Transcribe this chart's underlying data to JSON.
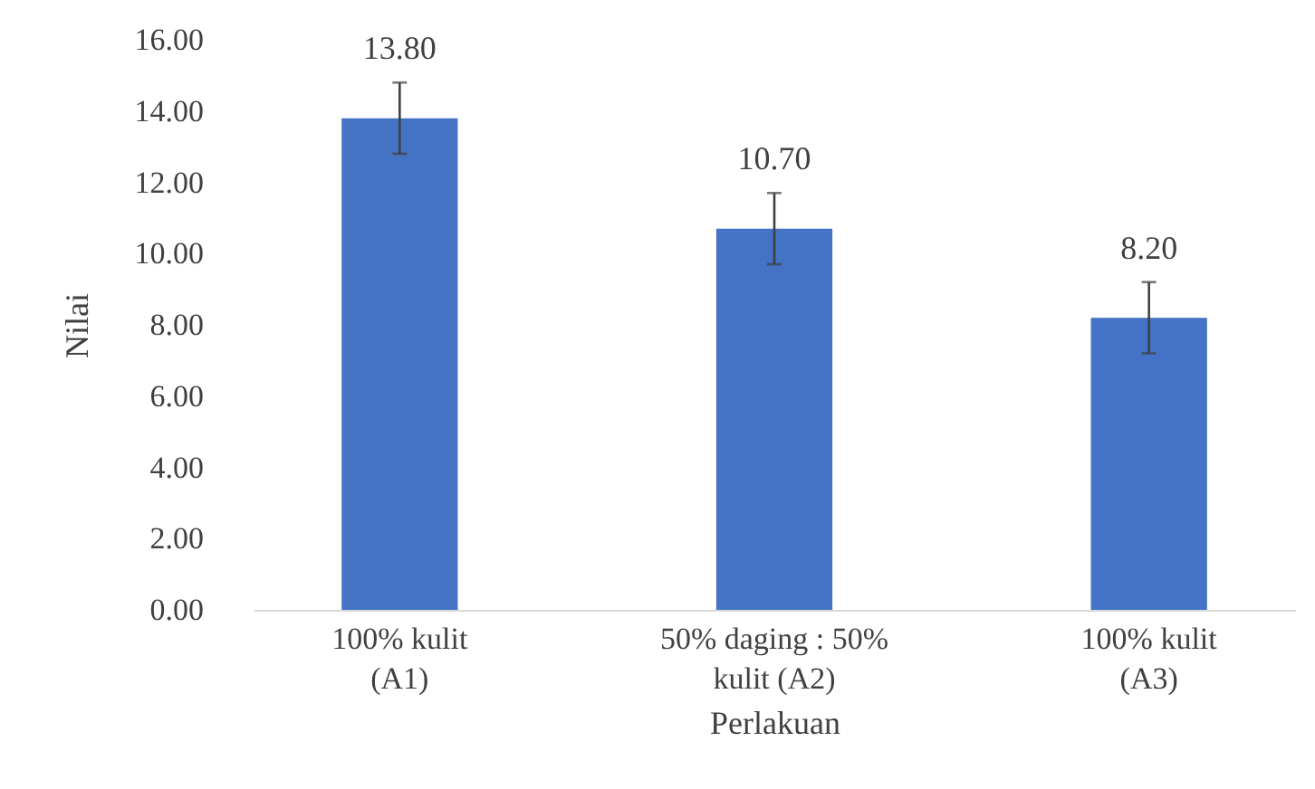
{
  "chart_data": {
    "type": "bar",
    "xlabel": "Perlakuan",
    "ylabel": "Nilai",
    "categories": [
      "100% kulit\n(A1)",
      "50% daging : 50%\nkulit   (A2)",
      "100% kulit\n(A3)"
    ],
    "values": [
      13.8,
      10.7,
      8.2
    ],
    "color": "#4472c4",
    "errors": [
      1,
      1,
      1
    ],
    "value_labels": [
      "13.80",
      "10.70",
      "8.20"
    ],
    "ylim": [
      0,
      16
    ],
    "yticks": [
      {
        "value": 0,
        "label": "0.00"
      },
      {
        "value": 2,
        "label": "2.00"
      },
      {
        "value": 4,
        "label": "4.00"
      },
      {
        "value": 6,
        "label": "6.00"
      },
      {
        "value": 8,
        "label": "8.00"
      },
      {
        "value": 10,
        "label": "10.00"
      },
      {
        "value": 12,
        "label": "12.00"
      },
      {
        "value": 14,
        "label": "14.00"
      },
      {
        "value": 16,
        "label": "16.00"
      }
    ],
    "grid": false
  }
}
